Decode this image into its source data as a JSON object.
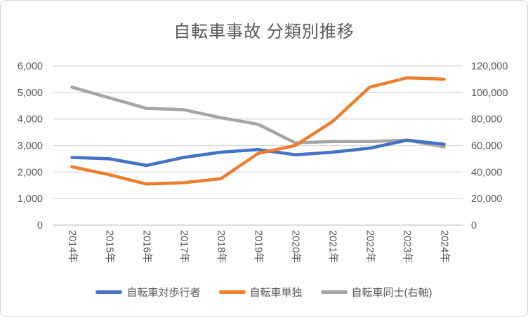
{
  "chart_data": {
    "type": "line",
    "title": "自転車事故 分類別推移",
    "categories": [
      "2014年",
      "2015年",
      "2016年",
      "2017年",
      "2018年",
      "2019年",
      "2020年",
      "2021年",
      "2022年",
      "2023年",
      "2024年"
    ],
    "series": [
      {
        "name": "自転車対歩行者",
        "color": "#4472C4",
        "axis": "left",
        "values": [
          2550,
          2500,
          2250,
          2550,
          2750,
          2850,
          2650,
          2750,
          2900,
          3200,
          3050
        ]
      },
      {
        "name": "自転車単独",
        "color": "#ED7D31",
        "axis": "left",
        "values": [
          2200,
          1900,
          1550,
          1600,
          1750,
          2700,
          3000,
          3900,
          5200,
          5550,
          5500
        ]
      },
      {
        "name": "自転車同士(右軸)",
        "color": "#A5A5A5",
        "axis": "right",
        "values": [
          104000,
          96000,
          88000,
          87000,
          81000,
          76000,
          62000,
          63000,
          63000,
          64000,
          59000
        ]
      }
    ],
    "left_axis": {
      "min": 0,
      "max": 6000,
      "tick_labels": [
        "0",
        "1,000",
        "2,000",
        "3,000",
        "4,000",
        "5,000",
        "6,000"
      ]
    },
    "right_axis": {
      "min": 0,
      "max": 120000,
      "tick_labels": [
        "0",
        "20,000",
        "40,000",
        "60,000",
        "80,000",
        "100,000",
        "120,000"
      ]
    },
    "grid": true,
    "legend_position": "bottom",
    "x_label_rotation_deg": 90,
    "text_color": "#595959",
    "gridline_color": "#d9d9d9",
    "axis_line_color": "#c6c6c6"
  }
}
